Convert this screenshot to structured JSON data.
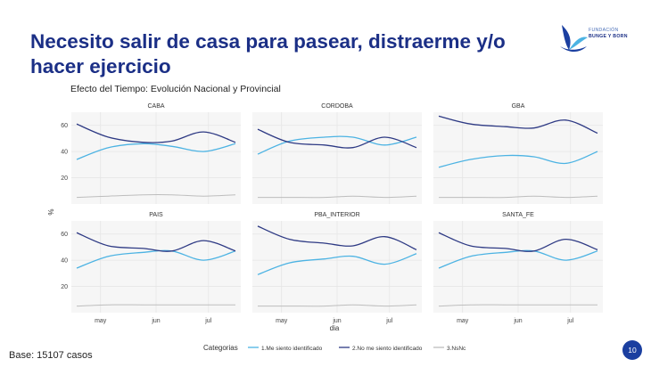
{
  "slide": {
    "title": "Necesito salir de casa para pasear, distraerme y/o hacer ejercicio",
    "subtitle": "Efecto del Tiempo: Evolución Nacional y Provincial",
    "base_note": "Base: 15107 casos",
    "page_number": "10",
    "logo": {
      "line1": "FUNDACIÓN",
      "line2": "BUNGE Y BORN",
      "icon": "fundacion-wave-logo-icon"
    }
  },
  "colors": {
    "title": "#1b2f86",
    "series_1": "#4cb3e3",
    "series_2": "#2e3a84",
    "series_3": "#bdbdbd",
    "panel_bg": "#f6f6f6",
    "page_badge": "#1b3fa0"
  },
  "chart_data": {
    "type": "line",
    "layout": "facet-grid",
    "xlabel": "dia",
    "ylabel": "%",
    "x_ticks": [
      "may",
      "jun",
      "jul"
    ],
    "y_ticks": [
      20,
      40,
      60
    ],
    "ylim": [
      0,
      70
    ],
    "grid": true,
    "legend": {
      "title": "Categorias",
      "placement": "bottom"
    },
    "x": [
      "may-01",
      "may-15",
      "jun-01",
      "jun-15",
      "jul-01",
      "jul-15"
    ],
    "series_names": [
      "1.Me siento identificado",
      "2.No me siento identificado",
      "3.NsNc"
    ],
    "facets": [
      {
        "name": "CABA",
        "series": [
          {
            "name": "1.Me siento identificado",
            "values": [
              34,
              43,
              46,
              44,
              40,
              46
            ]
          },
          {
            "name": "2.No me siento identificado",
            "values": [
              61,
              51,
              47,
              48,
              55,
              47
            ]
          },
          {
            "name": "3.NsNc",
            "values": [
              5,
              6,
              7,
              7,
              6,
              7
            ]
          }
        ]
      },
      {
        "name": "CORDOBA",
        "series": [
          {
            "name": "1.Me siento identificado",
            "values": [
              38,
              48,
              51,
              51,
              45,
              51
            ]
          },
          {
            "name": "2.No me siento identificado",
            "values": [
              57,
              47,
              45,
              43,
              51,
              43
            ]
          },
          {
            "name": "3.NsNc",
            "values": [
              5,
              5,
              5,
              6,
              5,
              6
            ]
          }
        ]
      },
      {
        "name": "GBA",
        "series": [
          {
            "name": "1.Me siento identificado",
            "values": [
              28,
              34,
              37,
              36,
              31,
              40
            ]
          },
          {
            "name": "2.No me siento identificado",
            "values": [
              67,
              61,
              59,
              58,
              64,
              54
            ]
          },
          {
            "name": "3.NsNc",
            "values": [
              5,
              5,
              5,
              6,
              5,
              6
            ]
          }
        ]
      },
      {
        "name": "PAIS",
        "series": [
          {
            "name": "1.Me siento identificado",
            "values": [
              34,
              43,
              46,
              47,
              40,
              47
            ]
          },
          {
            "name": "2.No me siento identificado",
            "values": [
              61,
              51,
              49,
              47,
              55,
              47
            ]
          },
          {
            "name": "3.NsNc",
            "values": [
              5,
              6,
              6,
              6,
              6,
              6
            ]
          }
        ]
      },
      {
        "name": "PBA_INTERIOR",
        "series": [
          {
            "name": "1.Me siento identificado",
            "values": [
              29,
              38,
              41,
              43,
              37,
              45
            ]
          },
          {
            "name": "2.No me siento identificado",
            "values": [
              66,
              56,
              53,
              51,
              58,
              48
            ]
          },
          {
            "name": "3.NsNc",
            "values": [
              5,
              5,
              5,
              6,
              5,
              6
            ]
          }
        ]
      },
      {
        "name": "SANTA_FE",
        "series": [
          {
            "name": "1.Me siento identificado",
            "values": [
              34,
              43,
              46,
              47,
              40,
              47
            ]
          },
          {
            "name": "2.No me siento identificado",
            "values": [
              61,
              51,
              49,
              47,
              56,
              48
            ]
          },
          {
            "name": "3.NsNc",
            "values": [
              5,
              6,
              6,
              6,
              6,
              6
            ]
          }
        ]
      }
    ]
  }
}
